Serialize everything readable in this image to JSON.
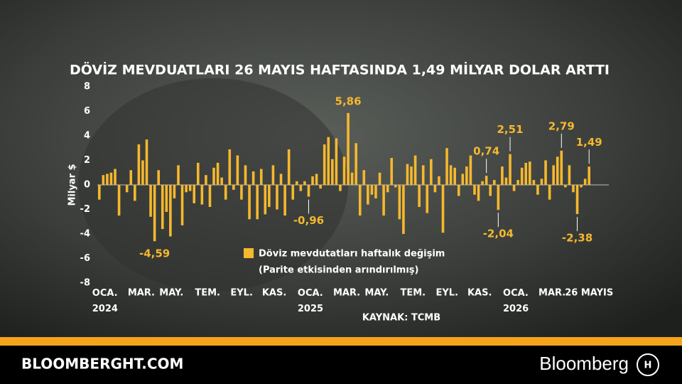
{
  "chart_data": {
    "type": "bar",
    "title": "DÖVİZ MEVDUATLARI 26 MAYIS HAFTASINDA 1,49 MİLYAR DOLAR ARTTI",
    "ylabel": "Milyar $",
    "source": "KAYNAK: TCMB",
    "legend_note": "(Parite etkisinden arındırılmış)",
    "ylim": [
      -8,
      8
    ],
    "yticks": [
      8,
      6,
      4,
      2,
      0,
      -2,
      -4,
      -6,
      -8
    ],
    "grid": true,
    "categories": [
      "OCA.\n2024",
      null,
      null,
      null,
      null,
      null,
      null,
      null,
      null,
      "MAR.",
      null,
      null,
      null,
      null,
      null,
      null,
      null,
      "MAY.",
      null,
      null,
      null,
      null,
      null,
      null,
      null,
      null,
      "TEM.",
      null,
      null,
      null,
      null,
      null,
      null,
      null,
      null,
      "EYL.",
      null,
      null,
      null,
      null,
      null,
      null,
      null,
      "KAS.",
      null,
      null,
      null,
      null,
      null,
      null,
      null,
      null,
      "OCA.\n2025",
      null,
      null,
      null,
      null,
      null,
      null,
      null,
      null,
      "MAR.",
      null,
      null,
      null,
      null,
      null,
      null,
      null,
      "MAY.",
      null,
      null,
      null,
      null,
      null,
      null,
      null,
      null,
      "TEM.",
      null,
      null,
      null,
      null,
      null,
      null,
      null,
      null,
      "EYL.",
      null,
      null,
      null,
      null,
      null,
      null,
      null,
      "KAS.",
      null,
      null,
      null,
      null,
      null,
      null,
      null,
      null,
      "OCA.\n2026",
      null,
      null,
      null,
      null,
      null,
      null,
      null,
      null,
      "MAR.",
      null,
      null,
      null,
      null,
      null,
      null,
      null,
      null,
      null,
      null,
      "26 MAYIS"
    ],
    "series": [
      {
        "name": "Döviz mevdutatları haftalık değişim",
        "color": "#f5b82e",
        "values": [
          -1.2,
          0.8,
          0.9,
          1.0,
          1.3,
          -2.5,
          0,
          -0.6,
          1.2,
          -1.3,
          3.3,
          2.0,
          3.7,
          -2.6,
          -4.59,
          1.2,
          -3.6,
          -2.2,
          -4.2,
          -1.1,
          1.6,
          -3.3,
          -0.6,
          -0.5,
          -1.5,
          1.8,
          -1.6,
          0.8,
          -1.8,
          1.4,
          1.8,
          0.6,
          -1.2,
          2.9,
          -0.4,
          2.4,
          -1.2,
          1.6,
          -2.8,
          1.1,
          -2.8,
          1.3,
          -2.4,
          -1.8,
          1.6,
          -2.0,
          0.9,
          -2.5,
          2.9,
          -1.2,
          0.3,
          -0.5,
          0.3,
          -0.96,
          0.7,
          0.9,
          -0.3,
          3.3,
          3.9,
          2.1,
          3.8,
          -0.5,
          2.3,
          5.86,
          1.0,
          3.4,
          -2.5,
          1.2,
          -1.6,
          -0.8,
          -1.1,
          1.0,
          -2.5,
          -0.6,
          2.2,
          -0.2,
          -2.8,
          -4.0,
          1.7,
          1.5,
          2.4,
          -1.8,
          1.6,
          -2.3,
          2.1,
          -0.6,
          0.7,
          -3.9,
          3.0,
          1.6,
          1.4,
          -0.9,
          0.9,
          1.5,
          2.4,
          -0.8,
          -1.3,
          0.3,
          0.74,
          -0.9,
          0.4,
          -2.04,
          1.5,
          0.6,
          2.51,
          -0.5,
          0.4,
          1.4,
          1.8,
          1.9,
          0.4,
          -0.8,
          0.5,
          2.0,
          -1.2,
          1.6,
          2.3,
          2.79,
          -0.2,
          1.6,
          -0.6,
          -2.38,
          -0.2,
          0.5,
          1.49
        ],
        "value_labels": [
          null,
          null,
          null,
          null,
          null,
          null,
          null,
          null,
          null,
          null,
          null,
          null,
          null,
          null,
          "-4,59",
          null,
          null,
          null,
          null,
          null,
          null,
          null,
          null,
          null,
          null,
          null,
          null,
          null,
          null,
          null,
          null,
          null,
          null,
          null,
          null,
          null,
          null,
          null,
          null,
          null,
          null,
          null,
          null,
          null,
          null,
          null,
          null,
          null,
          null,
          null,
          null,
          null,
          null,
          "-0,96",
          null,
          null,
          null,
          null,
          null,
          null,
          null,
          null,
          null,
          "5,86",
          null,
          null,
          null,
          null,
          null,
          null,
          null,
          null,
          null,
          null,
          null,
          null,
          null,
          null,
          null,
          null,
          null,
          null,
          null,
          null,
          null,
          null,
          null,
          null,
          null,
          null,
          null,
          null,
          null,
          null,
          null,
          null,
          null,
          null,
          "0,74",
          null,
          null,
          "-2,04",
          null,
          null,
          "2,51",
          null,
          null,
          null,
          null,
          null,
          null,
          null,
          null,
          null,
          null,
          null,
          null,
          "2,79",
          null,
          null,
          null,
          "-2,38",
          null,
          null,
          "1,49"
        ]
      }
    ]
  },
  "footer": {
    "site": "BLOOMBERGHT.COM",
    "brand": "Bloomberg"
  }
}
